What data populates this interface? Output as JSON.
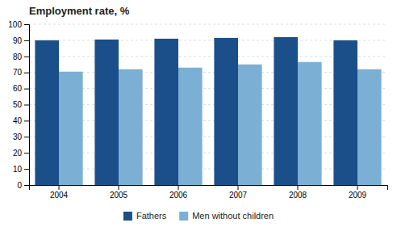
{
  "chart_data": {
    "type": "bar",
    "title": "Employment rate, %",
    "categories": [
      "2004",
      "2005",
      "2006",
      "2007",
      "2008",
      "2009"
    ],
    "series": [
      {
        "name": "Fathers",
        "color": "#1B4F8A",
        "values": [
          90.0,
          90.5,
          91.0,
          91.5,
          92.0,
          90.0
        ]
      },
      {
        "name": "Men without children",
        "color": "#7BAFD4",
        "values": [
          70.5,
          72.0,
          73.0,
          75.0,
          76.5,
          72.0
        ]
      }
    ],
    "ylim": [
      0,
      100
    ],
    "yticks": [
      0,
      10,
      20,
      30,
      40,
      50,
      60,
      70,
      80,
      90,
      100
    ],
    "grid": true,
    "legend": "bottom"
  }
}
